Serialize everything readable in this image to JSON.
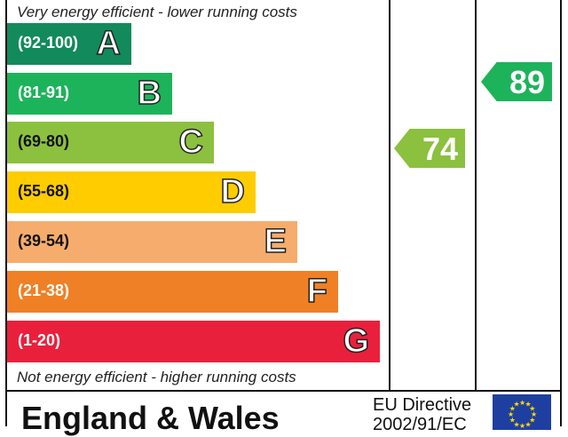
{
  "chart_data": {
    "type": "bar",
    "top_caption": "Very energy efficient - lower running costs",
    "bottom_caption": "Not energy efficient - higher running costs",
    "bands": [
      {
        "range": "(92-100)",
        "letter": "A",
        "color": "#138a5c"
      },
      {
        "range": "(81-91)",
        "letter": "B",
        "color": "#1db35a"
      },
      {
        "range": "(69-80)",
        "letter": "C",
        "color": "#8cc03f"
      },
      {
        "range": "(55-68)",
        "letter": "D",
        "color": "#ffcc00"
      },
      {
        "range": "(39-54)",
        "letter": "E",
        "color": "#f6ac6c"
      },
      {
        "range": "(21-38)",
        "letter": "F",
        "color": "#ef8026"
      },
      {
        "range": "(1-20)",
        "letter": "G",
        "color": "#e9203c"
      }
    ],
    "current": {
      "value": "74",
      "color": "#8cc03f"
    },
    "potential": {
      "value": "89",
      "color": "#1db35a"
    }
  },
  "footer": {
    "region": "England & Wales",
    "directive_line1": "EU Directive",
    "directive_line2": "2002/91/EC"
  }
}
